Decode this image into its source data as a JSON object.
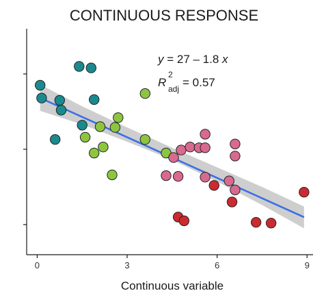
{
  "chart_data": {
    "type": "scatter",
    "title": "CONTINUOUS RESPONSE",
    "xlabel": "Continuous variable",
    "ylabel": "",
    "xlim": [
      -0.35,
      9.2
    ],
    "ylim": [
      6,
      36
    ],
    "x_ticks": [
      0,
      3,
      6,
      9
    ],
    "x_tick_labels": [
      "0",
      "3",
      "6",
      "9"
    ],
    "y_ticks": [
      10,
      20,
      30
    ],
    "y_tick_labels": [
      "",
      "",
      ""
    ],
    "grid": false,
    "legend": "none",
    "annotation": {
      "equation_y": "y",
      "equation_rest": " = 27 – 1.8 ",
      "equation_x": "x",
      "r2_R": "R",
      "r2_sup": "2",
      "r2_sub": "adj",
      "r2_value": " = 0.57"
    },
    "regression": {
      "intercept": 27.0,
      "slope": -1.8,
      "x_range": [
        0.1,
        8.9
      ],
      "band": [
        {
          "x": 0.1,
          "lo": 25.1,
          "hi": 28.6
        },
        {
          "x": 1.5,
          "lo": 23.3,
          "hi": 25.7
        },
        {
          "x": 3.0,
          "lo": 21.0,
          "hi": 22.9
        },
        {
          "x": 4.5,
          "lo": 18.6,
          "hi": 20.2
        },
        {
          "x": 6.0,
          "lo": 15.7,
          "hi": 17.6
        },
        {
          "x": 7.5,
          "lo": 12.6,
          "hi": 15.0
        },
        {
          "x": 8.9,
          "lo": 9.5,
          "hi": 12.4
        }
      ],
      "line_color": "#3b6fe6",
      "band_color": "#bdbdbd"
    },
    "points": [
      {
        "x": 0.1,
        "y": 28.5,
        "color": "#1b8a8f"
      },
      {
        "x": 0.15,
        "y": 26.8,
        "color": "#1b8a8f"
      },
      {
        "x": 0.6,
        "y": 21.3,
        "color": "#1b8a8f"
      },
      {
        "x": 0.75,
        "y": 26.5,
        "color": "#1b8a8f"
      },
      {
        "x": 0.8,
        "y": 25.2,
        "color": "#1b8a8f"
      },
      {
        "x": 1.4,
        "y": 31.0,
        "color": "#1b8a8f"
      },
      {
        "x": 1.5,
        "y": 23.2,
        "color": "#1b8a8f"
      },
      {
        "x": 1.8,
        "y": 30.8,
        "color": "#1b8a8f"
      },
      {
        "x": 1.9,
        "y": 26.6,
        "color": "#1b8a8f"
      },
      {
        "x": 1.6,
        "y": 21.6,
        "color": "#8cc63f"
      },
      {
        "x": 1.9,
        "y": 19.5,
        "color": "#8cc63f"
      },
      {
        "x": 2.1,
        "y": 23.0,
        "color": "#8cc63f"
      },
      {
        "x": 2.2,
        "y": 20.3,
        "color": "#8cc63f"
      },
      {
        "x": 2.5,
        "y": 16.6,
        "color": "#8cc63f"
      },
      {
        "x": 2.6,
        "y": 22.9,
        "color": "#8cc63f"
      },
      {
        "x": 2.7,
        "y": 24.2,
        "color": "#8cc63f"
      },
      {
        "x": 3.6,
        "y": 27.4,
        "color": "#8cc63f"
      },
      {
        "x": 3.6,
        "y": 21.3,
        "color": "#8cc63f"
      },
      {
        "x": 4.3,
        "y": 19.5,
        "color": "#8cc63f"
      },
      {
        "x": 4.3,
        "y": 16.5,
        "color": "#d96a8f"
      },
      {
        "x": 4.55,
        "y": 18.9,
        "color": "#d96a8f"
      },
      {
        "x": 4.7,
        "y": 16.4,
        "color": "#d96a8f"
      },
      {
        "x": 4.8,
        "y": 19.9,
        "color": "#d96a8f"
      },
      {
        "x": 5.1,
        "y": 20.3,
        "color": "#d96a8f"
      },
      {
        "x": 5.4,
        "y": 20.2,
        "color": "#d96a8f"
      },
      {
        "x": 5.6,
        "y": 20.2,
        "color": "#d96a8f"
      },
      {
        "x": 5.6,
        "y": 22.0,
        "color": "#d96a8f"
      },
      {
        "x": 5.6,
        "y": 16.3,
        "color": "#d96a8f"
      },
      {
        "x": 6.4,
        "y": 15.8,
        "color": "#d96a8f"
      },
      {
        "x": 6.6,
        "y": 19.1,
        "color": "#d96a8f"
      },
      {
        "x": 6.6,
        "y": 20.7,
        "color": "#d96a8f"
      },
      {
        "x": 6.6,
        "y": 14.6,
        "color": "#d96a8f"
      },
      {
        "x": 4.7,
        "y": 11.0,
        "color": "#cc2a30"
      },
      {
        "x": 4.9,
        "y": 10.5,
        "color": "#cc2a30"
      },
      {
        "x": 5.9,
        "y": 15.2,
        "color": "#cc2a30"
      },
      {
        "x": 6.5,
        "y": 13.0,
        "color": "#cc2a30"
      },
      {
        "x": 7.3,
        "y": 10.3,
        "color": "#cc2a30"
      },
      {
        "x": 7.8,
        "y": 10.2,
        "color": "#cc2a30"
      },
      {
        "x": 8.9,
        "y": 14.3,
        "color": "#cc2a30"
      }
    ]
  }
}
